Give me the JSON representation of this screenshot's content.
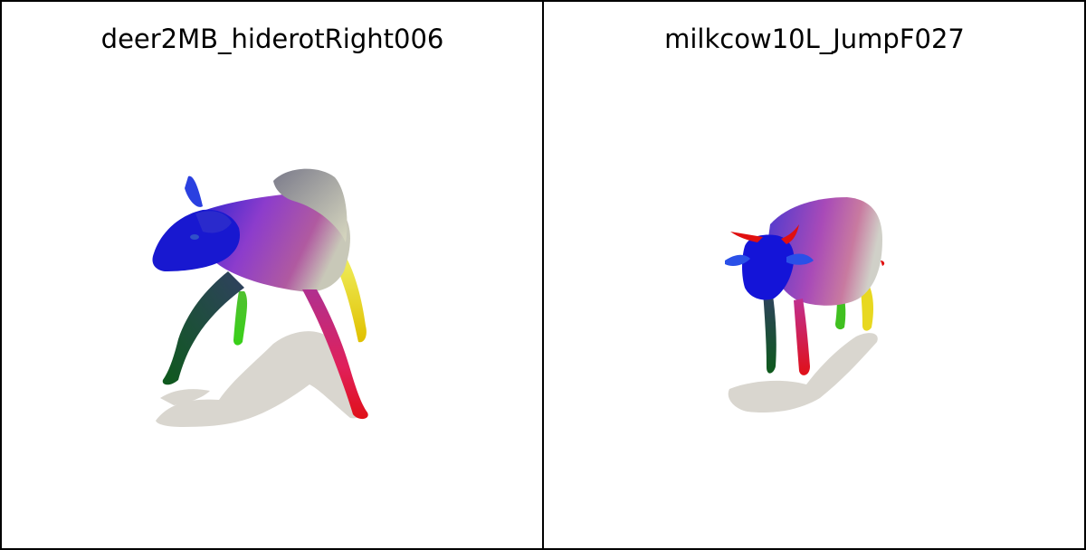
{
  "panels": [
    {
      "title": "deer2MB_hiderotRight006",
      "image_desc_icon": "deer-mesh-render"
    },
    {
      "title": "milkcow10L_JumpF027",
      "image_desc_icon": "cow-mesh-render"
    }
  ],
  "colors": {
    "border": "#000000",
    "shadow": "#d9d6cf",
    "head": "#1a1ad6",
    "body": "#8a3fc8",
    "leg_red": "#e01020",
    "leg_yellow": "#e8e020",
    "leg_green": "#30c020",
    "leg_darkgreen": "#0f5a1a"
  }
}
